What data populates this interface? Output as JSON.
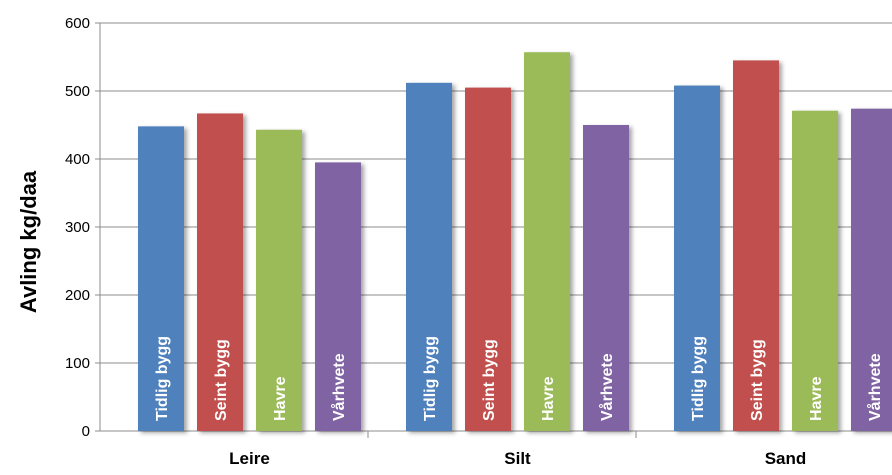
{
  "chart_data": {
    "type": "bar",
    "title": "",
    "xlabel": "",
    "ylabel": "Avling kg/daa",
    "ylim": [
      0,
      600
    ],
    "yticks": [
      0,
      100,
      200,
      300,
      400,
      500,
      600
    ],
    "grid": true,
    "legend": "none",
    "bar_labels_inside": true,
    "categories": [
      "Leire",
      "Silt",
      "Sand"
    ],
    "series": [
      {
        "name": "Tidlig bygg",
        "color": "#4F81BD",
        "values": [
          448,
          512,
          508
        ]
      },
      {
        "name": "Seint bygg",
        "color": "#C0504D",
        "values": [
          467,
          505,
          545
        ]
      },
      {
        "name": "Havre",
        "color": "#9BBB59",
        "values": [
          443,
          557,
          471
        ]
      },
      {
        "name": "Vårhvete",
        "color": "#8064A2",
        "values": [
          395,
          450,
          474
        ]
      }
    ]
  }
}
